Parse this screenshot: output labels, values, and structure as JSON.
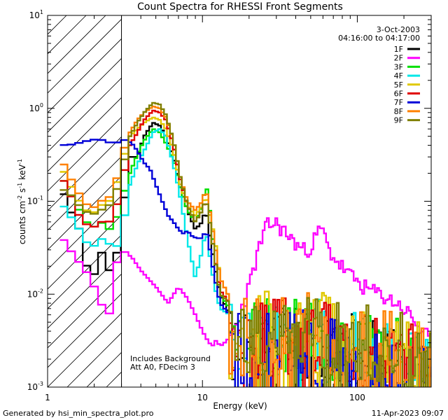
{
  "chart_data": {
    "type": "line",
    "title": "Count Spectra for RHESSI Front Segments",
    "xlabel": "Energy (keV)",
    "ylabel": "counts cm",
    "ylabel_sup1": "-2",
    "ylabel_mid": " s",
    "ylabel_sup2": "-1",
    "ylabel_mid2": " keV",
    "ylabel_sup3": "-1",
    "xscale": "log",
    "yscale": "log",
    "xlim": [
      1,
      300
    ],
    "ylim": [
      0.001,
      10
    ],
    "x_ticks": [
      {
        "value": 1,
        "label": "1"
      },
      {
        "value": 10,
        "label": "10"
      },
      {
        "value": 100,
        "label": "100"
      }
    ],
    "y_ticks": [
      {
        "value": 10,
        "base": "10",
        "exp": "1"
      },
      {
        "value": 1,
        "base": "10",
        "exp": "0"
      },
      {
        "value": 0.1,
        "base": "10",
        "exp": "-1"
      },
      {
        "value": 0.01,
        "base": "10",
        "exp": "-2"
      },
      {
        "value": 0.001,
        "base": "10",
        "exp": "-3"
      }
    ],
    "date": "3-Oct-2003",
    "time_range": "04:16:00 to 04:17:00",
    "hatched_below_keV": 3,
    "annotation_lines": [
      "Includes Background",
      "Att A0, FDecim 3"
    ],
    "series": [
      {
        "name": "1F",
        "color": "#000000",
        "seed": 11,
        "bump": 1.0,
        "low": [
          [
            1.2,
            0.15
          ],
          [
            1.4,
            0.08
          ],
          [
            1.6,
            0.05
          ],
          [
            1.9,
            0.012
          ],
          [
            2.2,
            0.03
          ],
          [
            2.5,
            0.018
          ],
          [
            2.75,
            0.022
          ],
          [
            3.0,
            0.06
          ],
          [
            3.4,
            0.3
          ],
          [
            3.8,
            0.3
          ],
          [
            4.2,
            0.5
          ],
          [
            4.8,
            0.7
          ],
          [
            5.3,
            0.65
          ],
          [
            5.8,
            0.5
          ],
          [
            6.5,
            0.3
          ],
          [
            7.2,
            0.14
          ],
          [
            8.0,
            0.08
          ],
          [
            9.0,
            0.05
          ],
          [
            10.0,
            0.06
          ],
          [
            10.5,
            0.085
          ],
          [
            11.0,
            0.05
          ],
          [
            12.0,
            0.02
          ],
          [
            13,
            0.01
          ],
          [
            15,
            0.006
          ]
        ]
      },
      {
        "name": "2F",
        "color": "#ff00ff",
        "seed": 23,
        "bump": 0,
        "low": [
          [
            1.2,
            0.044
          ],
          [
            1.4,
            0.03
          ],
          [
            1.6,
            0.022
          ],
          [
            1.9,
            0.015
          ],
          [
            2.2,
            0.008
          ],
          [
            2.5,
            0.006
          ],
          [
            2.75,
            0.02
          ],
          [
            3.0,
            0.03
          ],
          [
            3.5,
            0.025
          ],
          [
            4.0,
            0.018
          ],
          [
            5.0,
            0.012
          ],
          [
            6.0,
            0.008
          ],
          [
            7.0,
            0.012
          ],
          [
            8.0,
            0.009
          ],
          [
            9.0,
            0.006
          ],
          [
            10.0,
            0.004
          ],
          [
            11,
            0.003
          ],
          [
            13,
            0.0025
          ],
          [
            16,
            0.004
          ],
          [
            20,
            0.012
          ],
          [
            23,
            0.03
          ],
          [
            26,
            0.055
          ],
          [
            30,
            0.058
          ],
          [
            35,
            0.045
          ],
          [
            40,
            0.035
          ],
          [
            45,
            0.03
          ],
          [
            50,
            0.032
          ],
          [
            55,
            0.045
          ],
          [
            60,
            0.05
          ],
          [
            65,
            0.03
          ],
          [
            75,
            0.022
          ],
          [
            90,
            0.016
          ],
          [
            110,
            0.012
          ],
          [
            140,
            0.01
          ],
          [
            180,
            0.008
          ],
          [
            220,
            0.006
          ],
          [
            260,
            0.004
          ],
          [
            300,
            0.0032
          ]
        ]
      },
      {
        "name": "3F",
        "color": "#00e000",
        "seed": 37,
        "bump": 1.1,
        "low": [
          [
            1.2,
            0.2
          ],
          [
            1.4,
            0.12
          ],
          [
            1.6,
            0.08
          ],
          [
            1.9,
            0.05
          ],
          [
            2.2,
            0.06
          ],
          [
            2.5,
            0.05
          ],
          [
            2.75,
            0.06
          ],
          [
            3.0,
            0.1
          ],
          [
            3.4,
            0.2
          ],
          [
            3.8,
            0.32
          ],
          [
            4.2,
            0.45
          ],
          [
            4.8,
            0.6
          ],
          [
            5.3,
            0.55
          ],
          [
            5.8,
            0.42
          ],
          [
            6.5,
            0.28
          ],
          [
            7.2,
            0.14
          ],
          [
            8.0,
            0.08
          ],
          [
            9.0,
            0.06
          ],
          [
            10.0,
            0.09
          ],
          [
            10.5,
            0.16
          ],
          [
            11.0,
            0.1
          ],
          [
            12.0,
            0.025
          ],
          [
            13,
            0.01
          ],
          [
            15,
            0.007
          ]
        ]
      },
      {
        "name": "4F",
        "color": "#00e8e8",
        "seed": 41,
        "bump": 1.05,
        "low": [
          [
            1.2,
            0.1
          ],
          [
            1.4,
            0.07
          ],
          [
            1.6,
            0.05
          ],
          [
            1.9,
            0.03
          ],
          [
            2.2,
            0.04
          ],
          [
            2.5,
            0.035
          ],
          [
            2.75,
            0.03
          ],
          [
            3.0,
            0.045
          ],
          [
            3.4,
            0.15
          ],
          [
            3.8,
            0.25
          ],
          [
            4.2,
            0.35
          ],
          [
            4.8,
            0.55
          ],
          [
            5.3,
            0.6
          ],
          [
            5.8,
            0.5
          ],
          [
            6.5,
            0.25
          ],
          [
            7.2,
            0.11
          ],
          [
            8.0,
            0.04
          ],
          [
            9.0,
            0.015
          ],
          [
            10.0,
            0.03
          ],
          [
            10.5,
            0.05
          ],
          [
            11.0,
            0.03
          ],
          [
            12.0,
            0.012
          ],
          [
            13,
            0.007
          ],
          [
            15,
            0.006
          ]
        ]
      },
      {
        "name": "5F",
        "color": "#e0c800",
        "seed": 53,
        "bump": 1.25,
        "low": [
          [
            1.2,
            0.25
          ],
          [
            1.4,
            0.15
          ],
          [
            1.6,
            0.1
          ],
          [
            1.9,
            0.07
          ],
          [
            2.2,
            0.09
          ],
          [
            2.5,
            0.1
          ],
          [
            2.75,
            0.14
          ],
          [
            3.0,
            0.25
          ],
          [
            3.4,
            0.5
          ],
          [
            3.8,
            0.6
          ],
          [
            4.2,
            0.7
          ],
          [
            4.8,
            0.8
          ],
          [
            5.3,
            0.75
          ],
          [
            5.8,
            0.6
          ],
          [
            6.5,
            0.35
          ],
          [
            7.2,
            0.15
          ],
          [
            8.0,
            0.09
          ],
          [
            9.0,
            0.07
          ],
          [
            10.0,
            0.09
          ],
          [
            10.5,
            0.12
          ],
          [
            11.0,
            0.08
          ],
          [
            12.0,
            0.04
          ],
          [
            13,
            0.015
          ],
          [
            15,
            0.009
          ]
        ]
      },
      {
        "name": "6F",
        "color": "#e00000",
        "seed": 67,
        "bump": 1.15,
        "low": [
          [
            1.2,
            0.2
          ],
          [
            1.4,
            0.12
          ],
          [
            1.6,
            0.07
          ],
          [
            1.9,
            0.05
          ],
          [
            2.2,
            0.06
          ],
          [
            2.5,
            0.06
          ],
          [
            2.75,
            0.08
          ],
          [
            3.0,
            0.15
          ],
          [
            3.4,
            0.4
          ],
          [
            3.8,
            0.55
          ],
          [
            4.2,
            0.75
          ],
          [
            4.8,
            0.95
          ],
          [
            5.3,
            0.9
          ],
          [
            5.8,
            0.75
          ],
          [
            6.5,
            0.4
          ],
          [
            7.2,
            0.17
          ],
          [
            8.0,
            0.09
          ],
          [
            9.0,
            0.06
          ],
          [
            10.0,
            0.08
          ],
          [
            10.5,
            0.11
          ],
          [
            11.0,
            0.07
          ],
          [
            12.0,
            0.025
          ],
          [
            13,
            0.011
          ],
          [
            15,
            0.008
          ]
        ]
      },
      {
        "name": "7F",
        "color": "#0000d8",
        "seed": 79,
        "bump": 0.85,
        "low": [
          [
            1.2,
            0.4
          ],
          [
            1.5,
            0.41
          ],
          [
            1.7,
            0.44
          ],
          [
            1.9,
            0.45
          ],
          [
            2.1,
            0.47
          ],
          [
            2.3,
            0.45
          ],
          [
            2.5,
            0.43
          ],
          [
            2.75,
            0.42
          ],
          [
            3.0,
            0.46
          ],
          [
            3.3,
            0.45
          ],
          [
            3.6,
            0.4
          ],
          [
            3.9,
            0.32
          ],
          [
            4.2,
            0.26
          ],
          [
            4.6,
            0.22
          ],
          [
            5.0,
            0.15
          ],
          [
            5.5,
            0.1
          ],
          [
            6.0,
            0.07
          ],
          [
            6.5,
            0.06
          ],
          [
            7.0,
            0.05
          ],
          [
            7.5,
            0.045
          ],
          [
            8.0,
            0.048
          ],
          [
            8.6,
            0.042
          ],
          [
            9.2,
            0.04
          ],
          [
            10.0,
            0.04
          ],
          [
            10.5,
            0.05
          ],
          [
            11.0,
            0.035
          ],
          [
            12.0,
            0.015
          ],
          [
            13,
            0.008
          ],
          [
            15,
            0.006
          ]
        ]
      },
      {
        "name": "8F",
        "color": "#ff8000",
        "seed": 83,
        "bump": 1.2,
        "low": [
          [
            1.2,
            0.3
          ],
          [
            1.4,
            0.18
          ],
          [
            1.6,
            0.12
          ],
          [
            1.9,
            0.08
          ],
          [
            2.2,
            0.1
          ],
          [
            2.5,
            0.11
          ],
          [
            2.75,
            0.15
          ],
          [
            3.0,
            0.3
          ],
          [
            3.4,
            0.55
          ],
          [
            3.8,
            0.75
          ],
          [
            4.2,
            0.9
          ],
          [
            4.8,
            1.05
          ],
          [
            5.3,
            1.0
          ],
          [
            5.8,
            0.8
          ],
          [
            6.5,
            0.45
          ],
          [
            7.2,
            0.18
          ],
          [
            8.0,
            0.1
          ],
          [
            9.0,
            0.08
          ],
          [
            10.0,
            0.1
          ],
          [
            10.5,
            0.14
          ],
          [
            11.0,
            0.09
          ],
          [
            12.0,
            0.035
          ],
          [
            13,
            0.015
          ],
          [
            15,
            0.009
          ]
        ]
      },
      {
        "name": "9F",
        "color": "#808000",
        "seed": 97,
        "bump": 1.3,
        "low": [
          [
            1.2,
            0.14
          ],
          [
            1.4,
            0.12
          ],
          [
            1.6,
            0.09
          ],
          [
            1.9,
            0.07
          ],
          [
            2.2,
            0.08
          ],
          [
            2.5,
            0.09
          ],
          [
            2.75,
            0.12
          ],
          [
            3.0,
            0.2
          ],
          [
            3.4,
            0.5
          ],
          [
            3.8,
            0.7
          ],
          [
            4.2,
            0.9
          ],
          [
            4.8,
            1.15
          ],
          [
            5.3,
            1.1
          ],
          [
            5.8,
            0.85
          ],
          [
            6.5,
            0.45
          ],
          [
            7.2,
            0.18
          ],
          [
            8.0,
            0.09
          ],
          [
            9.0,
            0.06
          ],
          [
            10.0,
            0.08
          ],
          [
            10.5,
            0.11
          ],
          [
            11.0,
            0.07
          ],
          [
            12.0,
            0.025
          ],
          [
            13,
            0.01
          ],
          [
            15,
            0.008
          ]
        ]
      }
    ]
  },
  "footer": {
    "generated_by": "Generated by hsi_min_spectra_plot.pro",
    "timestamp": "11-Apr-2023 09:07"
  }
}
